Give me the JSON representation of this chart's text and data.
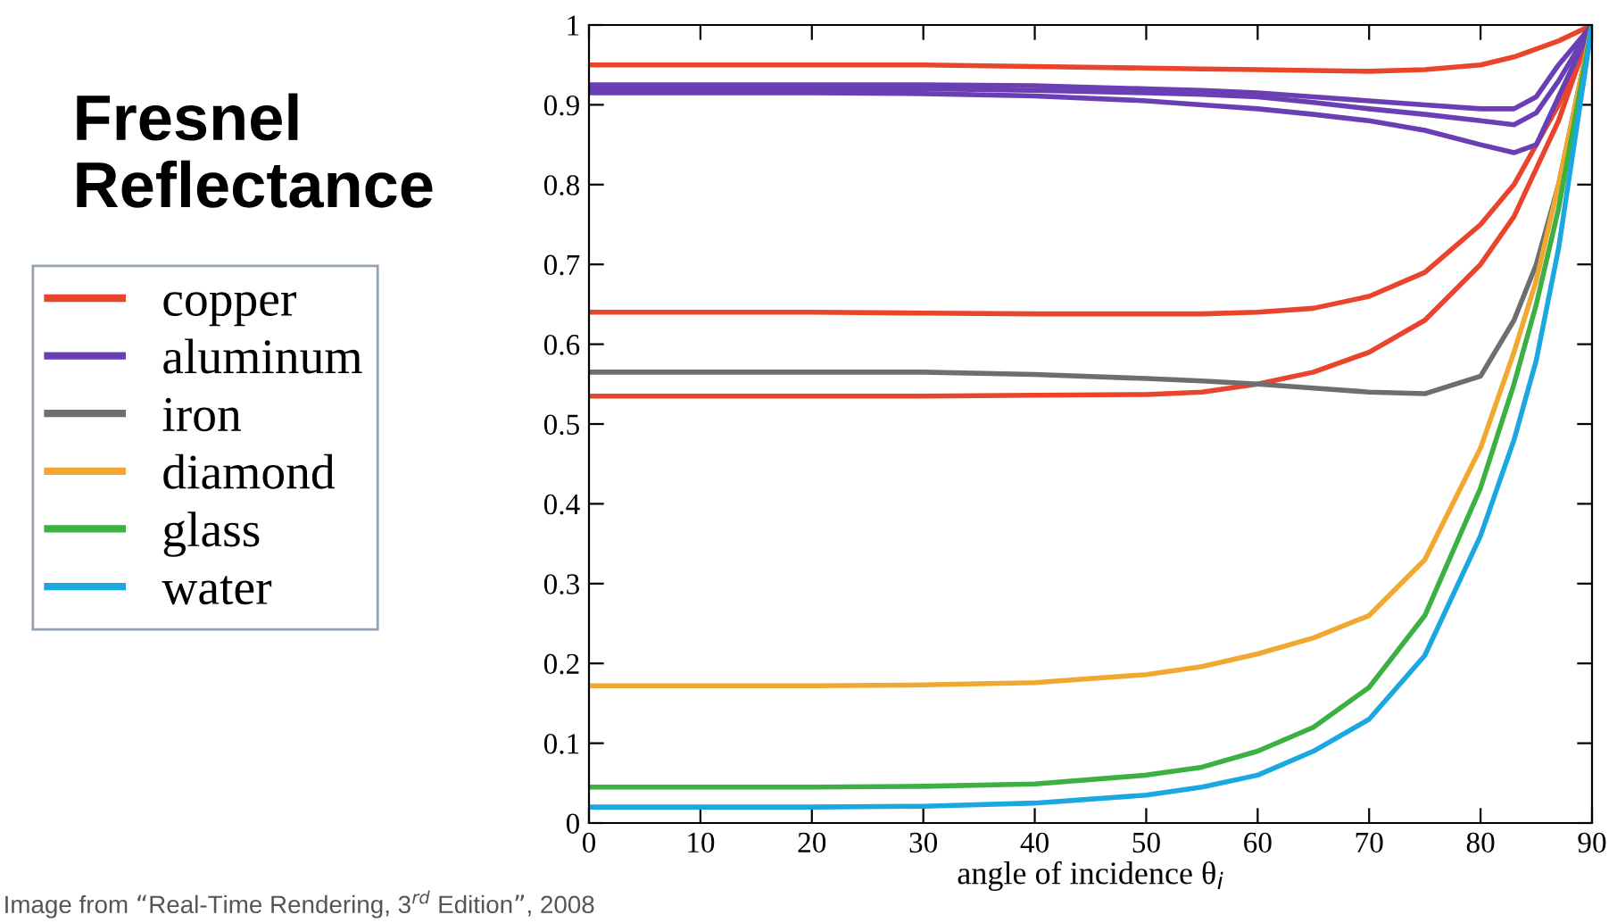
{
  "chart_data": {
    "type": "line",
    "title": "Fresnel\nReflectance",
    "xlabel": "angle of incidence θ$_{i}$",
    "x": [
      0,
      10,
      20,
      30,
      40,
      50,
      55,
      60,
      65,
      70,
      75,
      80,
      83,
      85,
      87,
      90
    ],
    "series": [
      {
        "name": "copper",
        "color": "#e8452c",
        "values": [
          0.95,
          0.95,
          0.95,
          0.95,
          0.948,
          0.946,
          0.945,
          0.944,
          0.943,
          0.942,
          0.944,
          0.95,
          0.96,
          0.97,
          0.98,
          1
        ]
      },
      {
        "color": "#e8452c",
        "values": [
          0.64,
          0.64,
          0.64,
          0.639,
          0.638,
          0.638,
          0.638,
          0.64,
          0.645,
          0.66,
          0.69,
          0.75,
          0.8,
          0.85,
          0.9,
          1
        ]
      },
      {
        "color": "#e8452c",
        "values": [
          0.535,
          0.535,
          0.535,
          0.535,
          0.536,
          0.537,
          0.54,
          0.55,
          0.565,
          0.59,
          0.63,
          0.7,
          0.76,
          0.82,
          0.88,
          1
        ]
      },
      {
        "name": "aluminum",
        "color": "#6a3fb5",
        "values": [
          0.925,
          0.925,
          0.925,
          0.925,
          0.924,
          0.92,
          0.918,
          0.915,
          0.91,
          0.905,
          0.9,
          0.895,
          0.895,
          0.91,
          0.95,
          1
        ]
      },
      {
        "color": "#6a3fb5",
        "values": [
          0.92,
          0.92,
          0.92,
          0.92,
          0.918,
          0.915,
          0.913,
          0.91,
          0.903,
          0.895,
          0.888,
          0.88,
          0.875,
          0.89,
          0.93,
          1
        ]
      },
      {
        "color": "#6a3fb5",
        "values": [
          0.915,
          0.915,
          0.915,
          0.914,
          0.911,
          0.905,
          0.9,
          0.895,
          0.888,
          0.88,
          0.868,
          0.85,
          0.84,
          0.85,
          0.91,
          1
        ]
      },
      {
        "name": "iron",
        "color": "#6d6e70",
        "values": [
          0.565,
          0.565,
          0.565,
          0.565,
          0.562,
          0.557,
          0.554,
          0.55,
          0.545,
          0.54,
          0.538,
          0.56,
          0.63,
          0.7,
          0.8,
          1
        ]
      },
      {
        "name": "diamond",
        "color": "#f0a830",
        "values": [
          0.172,
          0.172,
          0.172,
          0.173,
          0.176,
          0.186,
          0.196,
          0.212,
          0.232,
          0.26,
          0.33,
          0.47,
          0.59,
          0.68,
          0.8,
          1
        ]
      },
      {
        "name": "glass",
        "color": "#3cb043",
        "values": [
          0.045,
          0.045,
          0.045,
          0.046,
          0.049,
          0.06,
          0.07,
          0.09,
          0.12,
          0.17,
          0.26,
          0.42,
          0.55,
          0.65,
          0.77,
          1
        ]
      },
      {
        "name": "water",
        "color": "#1ba8e0",
        "values": [
          0.02,
          0.02,
          0.02,
          0.021,
          0.025,
          0.035,
          0.045,
          0.06,
          0.09,
          0.13,
          0.21,
          0.36,
          0.48,
          0.58,
          0.72,
          1
        ]
      }
    ],
    "xlim": [
      0,
      90
    ],
    "ylim": [
      0,
      1
    ],
    "xticks": [
      0,
      10,
      20,
      30,
      40,
      50,
      60,
      70,
      80,
      90
    ],
    "yticks": [
      0,
      0.1,
      0.2,
      0.3,
      0.4,
      0.5,
      0.6,
      0.7,
      0.8,
      0.9,
      1
    ],
    "legend": "left",
    "grid": false,
    "annotations": [
      "Image from “Real-Time Rendering, 3$^{rd}$ Edition”, 2008"
    ]
  }
}
